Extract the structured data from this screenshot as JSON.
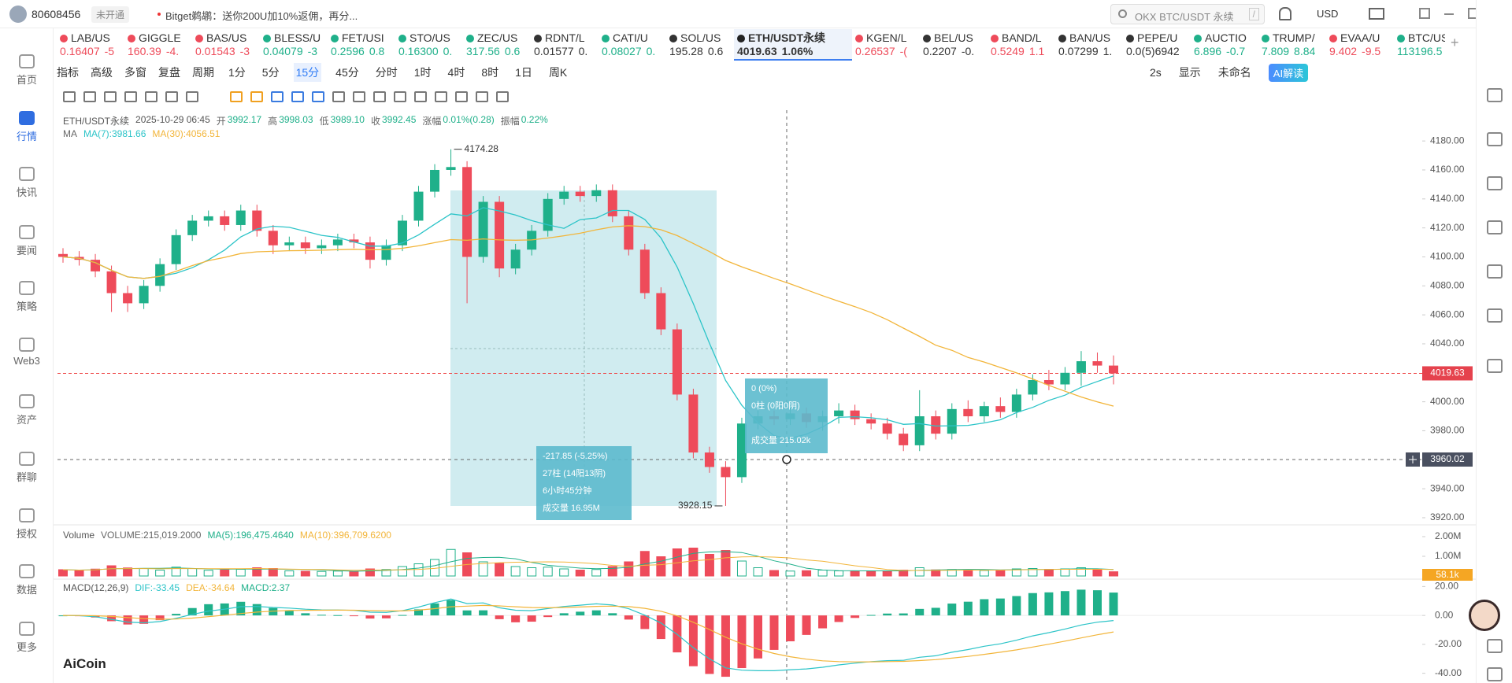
{
  "chart_data": {
    "type": "candlestick",
    "candles": [
      [
        4102,
        4106,
        4096,
        4100
      ],
      [
        4100,
        4104,
        4094,
        4098
      ],
      [
        4098,
        4102,
        4086,
        4090
      ],
      [
        4090,
        4094,
        4062,
        4075
      ],
      [
        4075,
        4080,
        4062,
        4068
      ],
      [
        4068,
        4084,
        4064,
        4080
      ],
      [
        4080,
        4099,
        4076,
        4095
      ],
      [
        4095,
        4119,
        4091,
        4115
      ],
      [
        4115,
        4129,
        4111,
        4125
      ],
      [
        4125,
        4132,
        4121,
        4128
      ],
      [
        4128,
        4132,
        4118,
        4122
      ],
      [
        4122,
        4136,
        4118,
        4132
      ],
      [
        4132,
        4136,
        4114,
        4118
      ],
      [
        4118,
        4122,
        4102,
        4108
      ],
      [
        4108,
        4114,
        4104,
        4110
      ],
      [
        4110,
        4114,
        4102,
        4106
      ],
      [
        4106,
        4112,
        4102,
        4108
      ],
      [
        4108,
        4116,
        4104,
        4112
      ],
      [
        4112,
        4116,
        4106,
        4110
      ],
      [
        4110,
        4114,
        4092,
        4098
      ],
      [
        4098,
        4112,
        4094,
        4108
      ],
      [
        4108,
        4129,
        4104,
        4125
      ],
      [
        4125,
        4149,
        4121,
        4145
      ],
      [
        4145,
        4164,
        4141,
        4160
      ],
      [
        4160,
        4174.28,
        4156,
        4162
      ],
      [
        4162,
        4166,
        4068,
        4100
      ],
      [
        4100,
        4142,
        4096,
        4138
      ],
      [
        4138,
        4142,
        4086,
        4092
      ],
      [
        4092,
        4109,
        4088,
        4105
      ],
      [
        4105,
        4122,
        4101,
        4118
      ],
      [
        4118,
        4144,
        4114,
        4140
      ],
      [
        4140,
        4149,
        4136,
        4145
      ],
      [
        4145,
        4149,
        4138,
        4142
      ],
      [
        4142,
        4150,
        4138,
        4146
      ],
      [
        4146,
        4150,
        4124,
        4128
      ],
      [
        4128,
        4132,
        4101,
        4105
      ],
      [
        4105,
        4109,
        4071,
        4075
      ],
      [
        4075,
        4079,
        4046,
        4050
      ],
      [
        4050,
        4054,
        4001,
        4005
      ],
      [
        4005,
        4009,
        3961,
        3965
      ],
      [
        3965,
        3969,
        3951,
        3955
      ],
      [
        3955,
        3959,
        3928.15,
        3948
      ],
      [
        3948,
        3989,
        3944,
        3985
      ],
      [
        3985,
        3994,
        3981,
        3990
      ],
      [
        3990,
        3994,
        3984,
        3988
      ],
      [
        3988,
        3996,
        3984,
        3992
      ],
      [
        3992,
        3996,
        3982,
        3986
      ],
      [
        3986,
        3994,
        3980,
        3990
      ],
      [
        3990,
        3999,
        3985,
        3994
      ],
      [
        3994,
        3998,
        3984,
        3988
      ],
      [
        3988,
        3992,
        3981,
        3985
      ],
      [
        3985,
        3989,
        3974,
        3978
      ],
      [
        3978,
        3982,
        3966,
        3970
      ],
      [
        3970,
        4008,
        3966,
        3990
      ],
      [
        3990,
        3994,
        3974,
        3978
      ],
      [
        3978,
        3999,
        3974,
        3995
      ],
      [
        3995,
        4001,
        3986,
        3990
      ],
      [
        3990,
        4000,
        3986,
        3997
      ],
      [
        3997,
        4003,
        3989,
        3993
      ],
      [
        3993,
        4009,
        3989,
        4005
      ],
      [
        4005,
        4019,
        4001,
        4015
      ],
      [
        4015,
        4022,
        4008,
        4012
      ],
      [
        4012,
        4024,
        4008,
        4020
      ],
      [
        4020,
        4035,
        4011,
        4028
      ],
      [
        4028,
        4034,
        4020,
        4025
      ],
      [
        4025,
        4032,
        4012,
        4019.63
      ]
    ],
    "volumes": [
      320000,
      280000,
      350000,
      520000,
      410000,
      380000,
      300000,
      450000,
      380000,
      290000,
      310000,
      340000,
      420000,
      380000,
      260000,
      240000,
      230000,
      250000,
      220000,
      360000,
      330000,
      480000,
      620000,
      840000,
      1350000,
      1180000,
      720000,
      650000,
      480000,
      420000,
      450000,
      360000,
      300000,
      330000,
      480000,
      720000,
      1250000,
      980000,
      1380000,
      1420000,
      1100000,
      1300000,
      760000,
      420000,
      280000,
      250000,
      270000,
      300000,
      260000,
      240000,
      240000,
      260000,
      300000,
      420000,
      310000,
      330000,
      320000,
      280000,
      300000,
      360000,
      380000,
      340000,
      360000,
      420000,
      330000,
      215019.2
    ],
    "up_color": "#1fb08a",
    "down_color": "#ee4b5a",
    "ylim": [
      3914,
      4198
    ],
    "yticks": [
      {
        "value": 3920,
        "label": "3920.00"
      },
      {
        "value": 3940,
        "label": "3940.00"
      },
      {
        "value": 3960,
        "label": "3960.00"
      },
      {
        "value": 3980,
        "label": "3980.00"
      },
      {
        "value": 4000,
        "label": "4000.00"
      },
      {
        "value": 4020,
        "label": "4020.00"
      },
      {
        "value": 4040,
        "label": "4040.00"
      },
      {
        "value": 4060,
        "label": "4060.00"
      },
      {
        "value": 4080,
        "label": "4080.00"
      },
      {
        "value": 4100,
        "label": "4100.00"
      },
      {
        "value": 4120,
        "label": "4120.00"
      },
      {
        "value": 4140,
        "label": "4140.00"
      },
      {
        "value": 4160,
        "label": "4160.00"
      },
      {
        "value": 4180,
        "label": "4180.00"
      }
    ],
    "ma_periods": [
      7,
      30
    ],
    "ma_colors": [
      "#2cc4c8",
      "#f2b53a"
    ],
    "vol_ylim": [
      0,
      2440000
    ],
    "vol_yticks": [
      {
        "value": 2000000,
        "label": "2.00M"
      },
      {
        "value": 1000000,
        "label": "1.00M"
      }
    ],
    "macd_params": [
      12,
      26,
      9
    ],
    "macd_colors": [
      "#2cc4c8",
      "#f2b53a"
    ],
    "macd_ylim": [
      -44,
      24
    ],
    "macd_yticks": [
      {
        "value": 20,
        "label": "20.00"
      },
      {
        "value": 0,
        "label": "0.00"
      },
      {
        "value": -20,
        "label": "-20.00"
      },
      {
        "value": -40,
        "label": "-40.00"
      }
    ]
  },
  "ui": {
    "account": "80608456",
    "badge": "未开通",
    "promo": "Bitget鹈鹕：送你200U加10%返佣，再分...",
    "search": "OKX BTC/USDT 永续",
    "search_key": "/",
    "currency": "USD",
    "tickers": [
      {
        "name": "LAB/US",
        "price": "0.16407",
        "change": "-5",
        "color": "#ee4b5a"
      },
      {
        "name": "GIGGLE",
        "price": "160.39",
        "change": "-4.",
        "color": "#ee4b5a"
      },
      {
        "name": "BAS/US",
        "price": "0.01543",
        "change": "-3",
        "color": "#ee4b5a"
      },
      {
        "name": "BLESS/U",
        "price": "0.04079",
        "change": "-3",
        "color": "#1fb08a"
      },
      {
        "name": "FET/USI",
        "price": "0.2596",
        "change": "0.8",
        "color": "#1fb08a"
      },
      {
        "name": "STO/US",
        "price": "0.16300",
        "change": "0.",
        "color": "#1fb08a"
      },
      {
        "name": "ZEC/US",
        "price": "317.56",
        "change": "0.6",
        "color": "#1fb08a"
      },
      {
        "name": "RDNT/L",
        "price": "0.01577",
        "change": "0.",
        "color": "#333333"
      },
      {
        "name": "CATI/U",
        "price": "0.08027",
        "change": "0.",
        "color": "#1fb08a"
      },
      {
        "name": "SOL/US",
        "price": "195.28",
        "change": "0.6",
        "color": "#333333"
      },
      {
        "name": "ETH/USDT永续",
        "price": "4019.63",
        "change": "1.06%",
        "color": "#333333"
      },
      {
        "name": "KGEN/L",
        "price": "0.26537",
        "change": "-(",
        "color": "#ee4b5a"
      },
      {
        "name": "BEL/US",
        "price": "0.2207",
        "change": "-0.",
        "color": "#333333"
      },
      {
        "name": "BAND/L",
        "price": "0.5249",
        "change": "1.1",
        "color": "#ee4b5a"
      },
      {
        "name": "BAN/US",
        "price": "0.07299",
        "change": "1.",
        "color": "#333333"
      },
      {
        "name": "PEPE/U",
        "price": "0.0(5)6942",
        "change": "",
        "color": "#333333"
      },
      {
        "name": "AUCTIO",
        "price": "6.896",
        "change": "-0.7",
        "color": "#1fb08a"
      },
      {
        "name": "TRUMP/",
        "price": "7.809",
        "change": "8.84",
        "color": "#1fb08a"
      },
      {
        "name": "EVAA/U",
        "price": "9.402",
        "change": "-9.5",
        "color": "#ee4b5a"
      },
      {
        "name": "BTC/US",
        "price": "113196.5",
        "change": "(",
        "color": "#1fb08a"
      }
    ],
    "ticker_active": 10,
    "add_tab": "+",
    "tools": [
      "指标",
      "高级",
      "多窗",
      "复盘",
      "周期"
    ],
    "periods": [
      "1分",
      "5分",
      "15分",
      "45分",
      "分时",
      "1时",
      "4时",
      "8时",
      "1日",
      "周K"
    ],
    "period_active": 2,
    "tools_right": [
      "2s",
      "显示",
      "未命名",
      "AI解读"
    ],
    "nav": [
      "首页",
      "行情",
      "快讯",
      "要闻",
      "策略",
      "Web3",
      "资产",
      "群聊",
      "授权",
      "数据",
      "更多"
    ],
    "nav_active": 1,
    "info": {
      "symbol": "ETH/USDT永续",
      "time": "2025-10-29 06:45",
      "fields": [
        {
          "label": "开",
          "value": "3992.17"
        },
        {
          "label": "高",
          "value": "3998.03"
        },
        {
          "label": "低",
          "value": "3989.10"
        },
        {
          "label": "收",
          "value": "3992.45"
        },
        {
          "label": "涨幅",
          "value": "0.01%(0.28)"
        },
        {
          "label": "振幅",
          "value": "0.22%"
        }
      ]
    },
    "ma_legend": [
      "MA",
      "MA(7):3981.66",
      "MA(30):4056.51"
    ],
    "vol_legend": [
      "Volume",
      "VOLUME:215,019.2000",
      "MA(5):196,475.4640",
      "MA(10):396,709.6200"
    ],
    "vol_tag": "58.1k",
    "macd_legend": [
      "MACD(12,26,9)",
      "DIF:-33.45",
      "DEA:-34.64",
      "MACD:2.37"
    ],
    "measure": [
      "-217.85 (-5.25%)",
      "27柱 (14阳13阴)",
      "6小时45分钟",
      "成交量 16.95M"
    ],
    "measure_cursor": [
      "0 (0%)",
      "0柱 (0阳0阴)",
      "成交量 215.02k"
    ],
    "crosshair_price": "3960.02",
    "logo": "AiCoin"
  }
}
